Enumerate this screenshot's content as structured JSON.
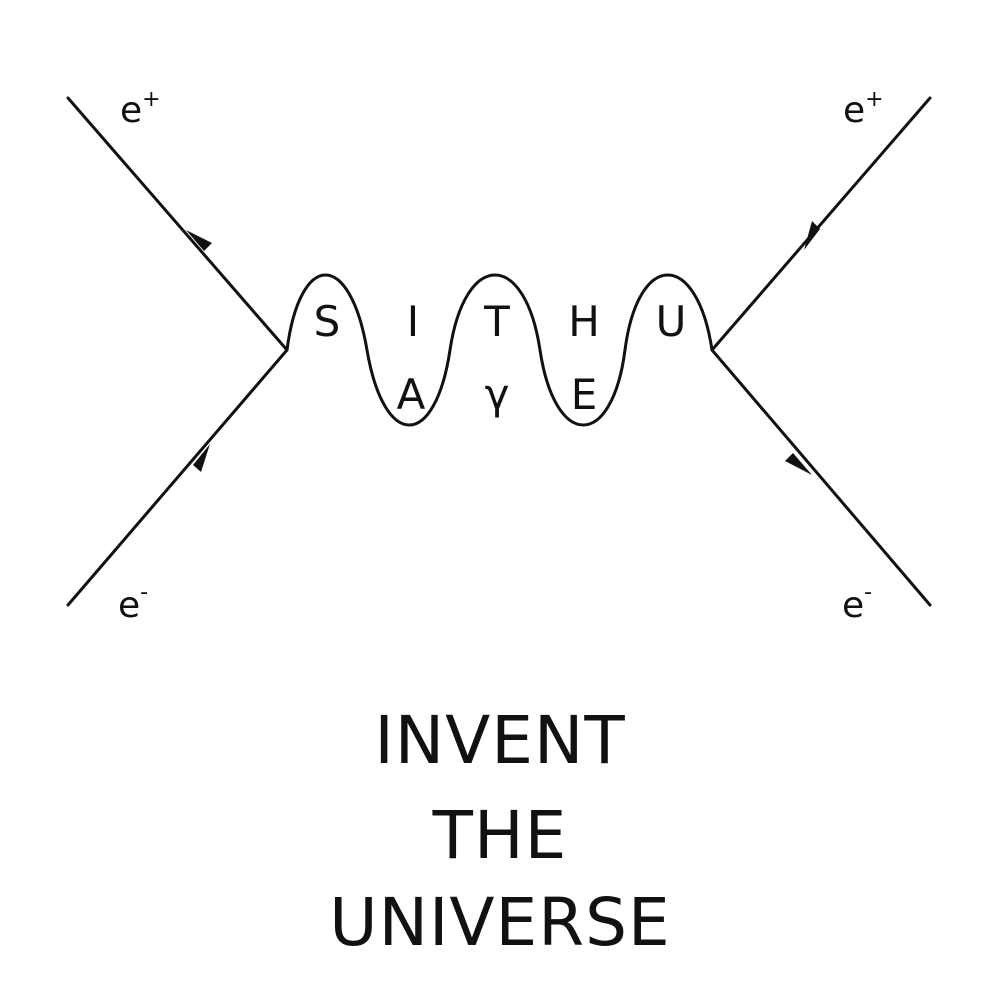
{
  "diagram": {
    "particles": {
      "top_left": {
        "base": "e",
        "charge": "+"
      },
      "top_right": {
        "base": "e",
        "charge": "+"
      },
      "bottom_left": {
        "base": "e",
        "charge": "-"
      },
      "bottom_right": {
        "base": "e",
        "charge": "-"
      }
    },
    "wave_letters": {
      "crests": [
        "S",
        "I",
        "T",
        "H",
        "U"
      ],
      "troughs": [
        "A",
        "γ",
        "E"
      ]
    },
    "line_color": "#111111"
  },
  "caption": {
    "line1": "INVENT",
    "line2": "THE",
    "line3": "UNIVERSE"
  }
}
